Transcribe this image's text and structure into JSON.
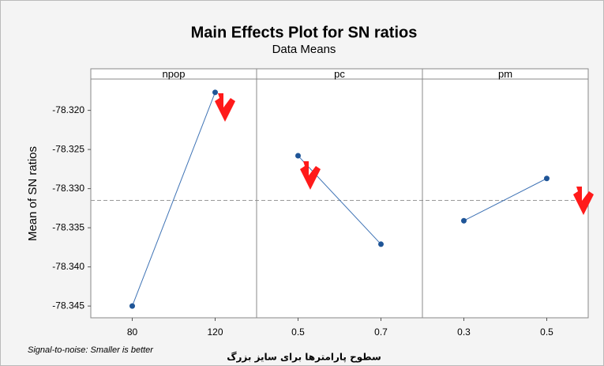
{
  "chart_data": {
    "type": "line",
    "title": "Main Effects Plot for SN ratios",
    "subtitle": "Data Means",
    "y_label": "Mean of SN ratios",
    "x_label": "سطوح پارامترها برای سایز بزرگ",
    "footnote": "Signal-to-noise: Smaller is better",
    "color": "#3f73b5",
    "marker_color": "#1f5597",
    "reference_value": -78.3315,
    "ylim": [
      -78.3465,
      -78.316
    ],
    "yticks": [
      {
        "value": -78.32,
        "label": "-78.320"
      },
      {
        "value": -78.325,
        "label": "-78.325"
      },
      {
        "value": -78.33,
        "label": "-78.330"
      },
      {
        "value": -78.335,
        "label": "-78.335"
      },
      {
        "value": -78.34,
        "label": "-78.340"
      },
      {
        "value": -78.345,
        "label": "-78.345"
      }
    ],
    "panels": [
      {
        "name": "npop",
        "categories": [
          "80",
          "120"
        ],
        "values": [
          -78.345,
          -78.3177
        ]
      },
      {
        "name": "pc",
        "categories": [
          "0.5",
          "0.7"
        ],
        "values": [
          -78.3258,
          -78.3371
        ]
      },
      {
        "name": "pm",
        "categories": [
          "0.3",
          "0.5"
        ],
        "values": [
          -78.3341,
          -78.3287
        ]
      }
    ]
  }
}
